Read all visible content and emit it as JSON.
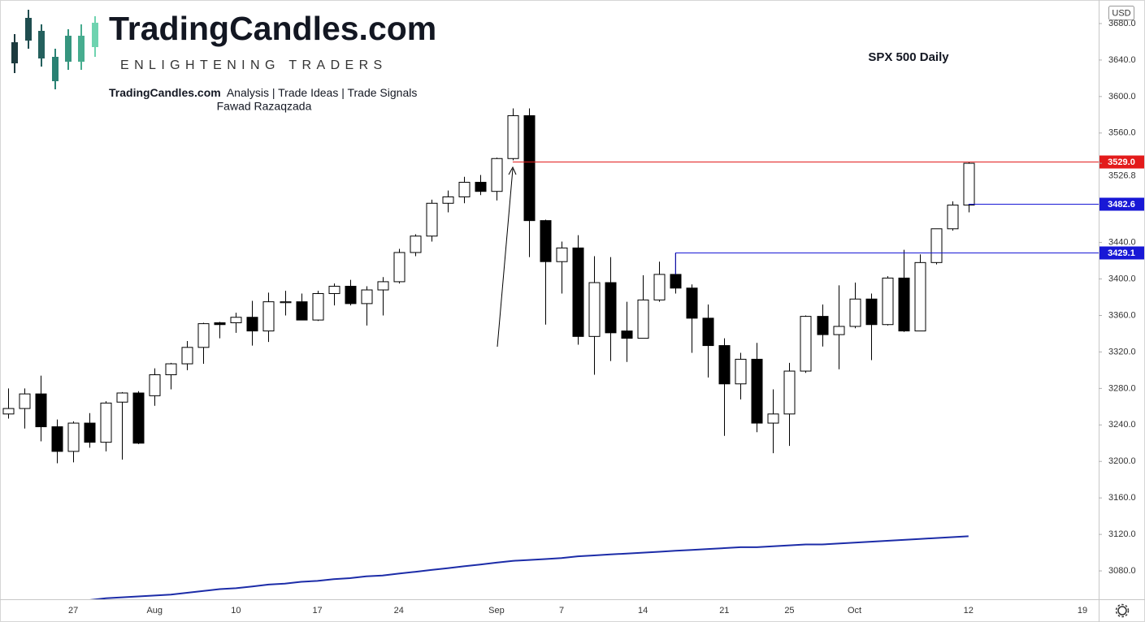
{
  "branding": {
    "logo": "TradingCandles.com",
    "tagline": "ENLIGHTENING TRADERS",
    "site": "TradingCandles.com",
    "services": "Analysis | Trade Ideas | Trade Signals",
    "author": "Fawad Razaqzada"
  },
  "chart_data": {
    "type": "candlestick",
    "title": "SPX 500 Daily",
    "currency": "USD",
    "categories": [
      null,
      null,
      null,
      null,
      "27",
      null,
      null,
      null,
      null,
      "Aug",
      null,
      null,
      null,
      null,
      "10",
      null,
      null,
      null,
      null,
      "17",
      null,
      null,
      null,
      null,
      "24",
      null,
      null,
      null,
      null,
      null,
      "Sep",
      null,
      null,
      null,
      "7",
      null,
      null,
      null,
      null,
      "14",
      null,
      null,
      null,
      null,
      "21",
      null,
      null,
      null,
      "25",
      null,
      null,
      null,
      "Oct",
      null,
      null,
      null,
      null,
      null,
      null,
      "12",
      null,
      null,
      null,
      null,
      null,
      null,
      "19"
    ],
    "open": [
      3252,
      3258,
      3274,
      3238,
      3211,
      3242,
      3221,
      3265,
      3275,
      3272,
      3295,
      3307,
      3325,
      3352,
      3352,
      3358,
      3343,
      3374,
      3375,
      3355,
      3384,
      3392,
      3373,
      3388,
      3397,
      3429,
      3447,
      3483,
      3490,
      3506,
      3496,
      3532,
      3579,
      3464,
      3419,
      3434,
      3337,
      3396,
      3343,
      3335,
      3377,
      3405,
      3390,
      3357,
      3327,
      3285,
      3312,
      3242,
      3252,
      3299,
      3359,
      3339,
      3348,
      3378,
      3350,
      3401,
      3343,
      3418,
      3455,
      3481,
      null,
      null,
      null,
      null,
      null,
      null,
      null
    ],
    "high": [
      3280,
      3280,
      3294,
      3246,
      3244,
      3253,
      3266,
      3276,
      3277,
      3302,
      3308,
      3332,
      3352,
      3353,
      3363,
      3376,
      3385,
      3387,
      3384,
      3387,
      3395,
      3399,
      3392,
      3402,
      3433,
      3449,
      3487,
      3497,
      3512,
      3514,
      3533,
      3587,
      3587,
      3465,
      3441,
      3448,
      3425,
      3424,
      3375,
      3404,
      3419,
      3429,
      3394,
      3372,
      3335,
      3319,
      3330,
      3279,
      3308,
      3360,
      3372,
      3393,
      3396,
      3384,
      3403,
      3432,
      3427,
      3455,
      3485,
      3528,
      null,
      null,
      null,
      null,
      null,
      null,
      null
    ],
    "low": [
      3247,
      3236,
      3222,
      3198,
      3199,
      3215,
      3211,
      3202,
      3219,
      3261,
      3279,
      3300,
      3307,
      3335,
      3341,
      3327,
      3331,
      3360,
      3355,
      3354,
      3371,
      3371,
      3349,
      3360,
      3395,
      3425,
      3441,
      3473,
      3483,
      3492,
      3486,
      3530,
      3424,
      3350,
      3384,
      3328,
      3295,
      3310,
      3309,
      3335,
      3375,
      3384,
      3319,
      3292,
      3228,
      3268,
      3232,
      3209,
      3217,
      3297,
      3326,
      3301,
      3346,
      3311,
      3349,
      3342,
      3343,
      3416,
      3453,
      3473,
      null,
      null,
      null,
      null,
      null,
      null,
      null
    ],
    "close": [
      3258,
      3274,
      3238,
      3211,
      3242,
      3221,
      3264,
      3275,
      3220,
      3295,
      3307,
      3325,
      3351,
      3350,
      3358,
      3343,
      3375,
      3375,
      3355,
      3384,
      3392,
      3373,
      3388,
      3397,
      3429,
      3447,
      3483,
      3490,
      3506,
      3496,
      3532,
      3579,
      3464,
      3419,
      3434,
      3337,
      3396,
      3341,
      3335,
      3377,
      3405,
      3390,
      3357,
      3327,
      3285,
      3312,
      3242,
      3252,
      3299,
      3359,
      3339,
      3348,
      3378,
      3350,
      3401,
      3343,
      3418,
      3455,
      3481,
      3526.8,
      null,
      null,
      null,
      null,
      null,
      null,
      null
    ],
    "up_color": "#ffffff",
    "down_color": "#000000",
    "outline_color": "#000000",
    "moving_average": {
      "color": "#1c2ca8",
      "values": [
        null,
        null,
        null,
        null,
        null,
        3048,
        3050,
        3051,
        3052,
        3053,
        3054,
        3056,
        3058,
        3060,
        3061,
        3063,
        3065,
        3066,
        3068,
        3069,
        3071,
        3072,
        3074,
        3075,
        3077,
        3079,
        3081,
        3083,
        3085,
        3087,
        3089,
        3091,
        3092,
        3093,
        3094,
        3096,
        3097,
        3098,
        3099,
        3100,
        3101,
        3102,
        3103,
        3104,
        3105,
        3106,
        3106,
        3107,
        3108,
        3109,
        3109,
        3110,
        3111,
        3112,
        3113,
        3114,
        3115,
        3116,
        3117,
        3118,
        null,
        null,
        null,
        null,
        null,
        null,
        null
      ]
    },
    "levels": [
      {
        "value": 3529.0,
        "label": "3529.0",
        "color": "#e31b1b"
      },
      {
        "value": 3482.6,
        "label": "3482.6",
        "color": "#1818d6"
      },
      {
        "value": 3429.1,
        "label": "3429.1",
        "color": "#1818d6"
      }
    ],
    "last_price": 3526.8,
    "ylim": [
      3048.9,
      3705.8
    ],
    "yticks": [
      {
        "value": 3080,
        "label": "3080.0"
      },
      {
        "value": 3120,
        "label": "3120.0"
      },
      {
        "value": 3160,
        "label": "3160.0"
      },
      {
        "value": 3200,
        "label": "3200.0"
      },
      {
        "value": 3240,
        "label": "3240.0"
      },
      {
        "value": 3280,
        "label": "3280.0"
      },
      {
        "value": 3320,
        "label": "3320.0"
      },
      {
        "value": 3360,
        "label": "3360.0"
      },
      {
        "value": 3400,
        "label": "3400.0"
      },
      {
        "value": 3440,
        "label": "3440.0"
      },
      {
        "value": 3560,
        "label": "3560.0"
      },
      {
        "value": 3600,
        "label": "3600.0"
      },
      {
        "value": 3640,
        "label": "3640.0"
      },
      {
        "value": 3680,
        "label": "3680.0"
      }
    ],
    "grid": false
  }
}
